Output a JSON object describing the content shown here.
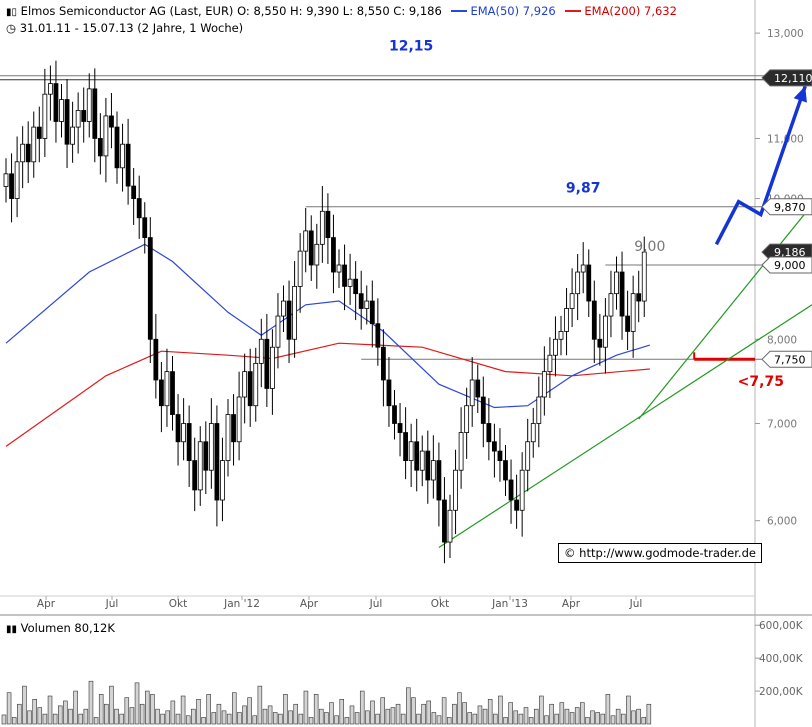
{
  "header": {
    "title": "Elmos Semiconductor AG (Last, EUR)",
    "ohlc": "O: 8,550  H: 9,390  L: 8,550  C: 9,186",
    "ema50_label": "EMA(50)",
    "ema50_value": "7,926",
    "ema200_label": "EMA(200)",
    "ema200_value": "7,632",
    "range": "31.01.11 - 15.07.13 (2 Jahre, 1 Woche)"
  },
  "credit": "© http://www.godmode-trader.de",
  "volume_title": "Volumen",
  "volume_value": "80,12K",
  "colors": {
    "ema50": "#2d47d8",
    "ema200": "#e01a1a",
    "support": "#1f9a1f",
    "arrow": "#1434d4",
    "annot_blue": "#1434d4",
    "annot_red": "#e00000",
    "annot_gray": "#777777"
  },
  "chart_data": {
    "type": "candlestick",
    "y_scale": "log",
    "ylim": [
      5.35,
      13.4
    ],
    "y_ticks": [
      {
        "v": 13.0,
        "label": "13,000"
      },
      {
        "v": 11.0,
        "label": "11,000"
      },
      {
        "v": 10.0,
        "label": "10,000"
      },
      {
        "v": 8.0,
        "label": "8,000"
      },
      {
        "v": 7.0,
        "label": "7,000"
      },
      {
        "v": 6.0,
        "label": "6,000"
      }
    ],
    "price_labels": [
      {
        "v": 12.11,
        "label": "12,110",
        "dark": true
      },
      {
        "v": 9.87,
        "label": "9,870",
        "dark": false
      },
      {
        "v": 9.186,
        "label": "9,186",
        "dark": true
      },
      {
        "v": 9.0,
        "label": "9,000",
        "dark": false
      },
      {
        "v": 7.75,
        "label": "7,750",
        "dark": false
      }
    ],
    "x_labels": [
      "Apr",
      "Jul",
      "Okt",
      "Jan '12",
      "Apr",
      "Jul",
      "Okt",
      "Jan '13",
      "Apr",
      "Jul"
    ],
    "weekly_close": [
      10.4,
      10.0,
      10.6,
      10.9,
      10.6,
      11.2,
      11.0,
      11.8,
      12.0,
      11.3,
      11.7,
      10.9,
      11.2,
      11.5,
      11.3,
      11.9,
      11.0,
      10.7,
      11.4,
      11.2,
      10.5,
      10.9,
      10.2,
      10.0,
      9.7,
      9.4,
      8.0,
      7.5,
      7.2,
      7.6,
      7.1,
      6.8,
      7.0,
      6.6,
      6.3,
      6.8,
      6.5,
      7.0,
      6.2,
      6.6,
      7.1,
      6.8,
      7.3,
      7.6,
      7.2,
      7.7,
      8.0,
      7.4,
      7.9,
      8.3,
      8.5,
      8.0,
      8.7,
      9.2,
      9.5,
      9.0,
      9.3,
      9.8,
      9.4,
      8.9,
      9.0,
      8.7,
      8.8,
      8.6,
      8.4,
      8.5,
      8.2,
      7.9,
      7.5,
      7.2,
      7.0,
      6.9,
      6.6,
      6.8,
      6.5,
      6.7,
      6.4,
      6.6,
      6.2,
      5.8,
      6.1,
      6.5,
      6.9,
      7.2,
      7.5,
      7.3,
      7.0,
      6.8,
      6.7,
      6.6,
      6.4,
      6.2,
      6.1,
      6.5,
      6.8,
      7.0,
      7.3,
      7.6,
      7.8,
      8.0,
      8.1,
      8.4,
      8.6,
      8.9,
      9.0,
      8.5,
      8.0,
      7.9,
      8.3,
      8.6,
      8.9,
      8.3,
      8.1,
      8.6,
      8.5,
      9.186
    ],
    "ema50": [
      [
        0,
        7.95
      ],
      [
        15,
        8.9
      ],
      [
        25,
        9.3
      ],
      [
        30,
        9.05
      ],
      [
        40,
        8.35
      ],
      [
        46,
        8.05
      ],
      [
        54,
        8.45
      ],
      [
        60,
        8.5
      ],
      [
        68,
        8.1
      ],
      [
        78,
        7.45
      ],
      [
        88,
        7.18
      ],
      [
        94,
        7.2
      ],
      [
        102,
        7.55
      ],
      [
        110,
        7.8
      ],
      [
        116,
        7.926
      ]
    ],
    "ema200": [
      [
        0,
        6.75
      ],
      [
        18,
        7.55
      ],
      [
        28,
        7.85
      ],
      [
        40,
        7.8
      ],
      [
        48,
        7.76
      ],
      [
        60,
        7.95
      ],
      [
        75,
        7.9
      ],
      [
        90,
        7.6
      ],
      [
        102,
        7.55
      ],
      [
        116,
        7.632
      ]
    ],
    "support_lines": [
      {
        "from": [
          78,
          5.75
        ],
        "to": [
          160,
          8.45
        ]
      },
      {
        "from": [
          114,
          7.05
        ],
        "to": [
          159,
          9.9
        ]
      }
    ],
    "resistance_lines": [
      {
        "from": [
          -1,
          12.15
        ],
        "to": [
          160,
          12.15
        ]
      },
      {
        "from": [
          54,
          9.87
        ],
        "to": [
          160,
          9.87
        ]
      },
      {
        "from": [
          108,
          9.0
        ],
        "to": [
          160,
          9.0
        ]
      },
      {
        "from": [
          64,
          7.75
        ],
        "to": [
          160,
          7.75
        ]
      }
    ],
    "red_support_line": {
      "from": [
        124,
        7.75
      ],
      "to": [
        160,
        7.75
      ]
    },
    "forecast_arrow": [
      [
        128,
        9.3
      ],
      [
        132,
        9.95
      ],
      [
        136,
        9.75
      ],
      [
        144,
        11.95
      ]
    ],
    "annotations": [
      {
        "text": "12,15",
        "color": "blue",
        "x": 73,
        "v": 12.65
      },
      {
        "text": "9,87",
        "color": "blue",
        "x": 104,
        "v": 10.1
      },
      {
        "text": "9,00",
        "color": "gray",
        "x": 116,
        "v": 9.2
      },
      {
        "text": "<7,75",
        "color": "red",
        "x": 136,
        "v": 7.43
      }
    ],
    "volume_axis": [
      {
        "v": 600,
        "label": "600,00K"
      },
      {
        "v": 400,
        "label": "400,00K"
      },
      {
        "v": 200,
        "label": "200,00K"
      }
    ],
    "volume": [
      55,
      190,
      40,
      120,
      230,
      80,
      150,
      100,
      60,
      170,
      60,
      110,
      140,
      90,
      200,
      60,
      90,
      260,
      40,
      180,
      120,
      230,
      90,
      60,
      160,
      100,
      250,
      120,
      200,
      180,
      90,
      60,
      80,
      140,
      60,
      170,
      50,
      90,
      150,
      40,
      180,
      70,
      120,
      80,
      60,
      190,
      70,
      110,
      160,
      50,
      230,
      90,
      110,
      70,
      60,
      180,
      80,
      120,
      60,
      200,
      40,
      180,
      90,
      70,
      130,
      50,
      150,
      40,
      110,
      70,
      200,
      80,
      140,
      60,
      160,
      90,
      100,
      120,
      60,
      220,
      160,
      60,
      120,
      140,
      70,
      50,
      160,
      40,
      120,
      190,
      130,
      70,
      60,
      110,
      90,
      150,
      60,
      170,
      40,
      130,
      80,
      60,
      100,
      40,
      90,
      170,
      50,
      120,
      60,
      130,
      90,
      70,
      100,
      130,
      40,
      80,
      70,
      60,
      180,
      50,
      90,
      60,
      170,
      80,
      90,
      40,
      120
    ]
  }
}
